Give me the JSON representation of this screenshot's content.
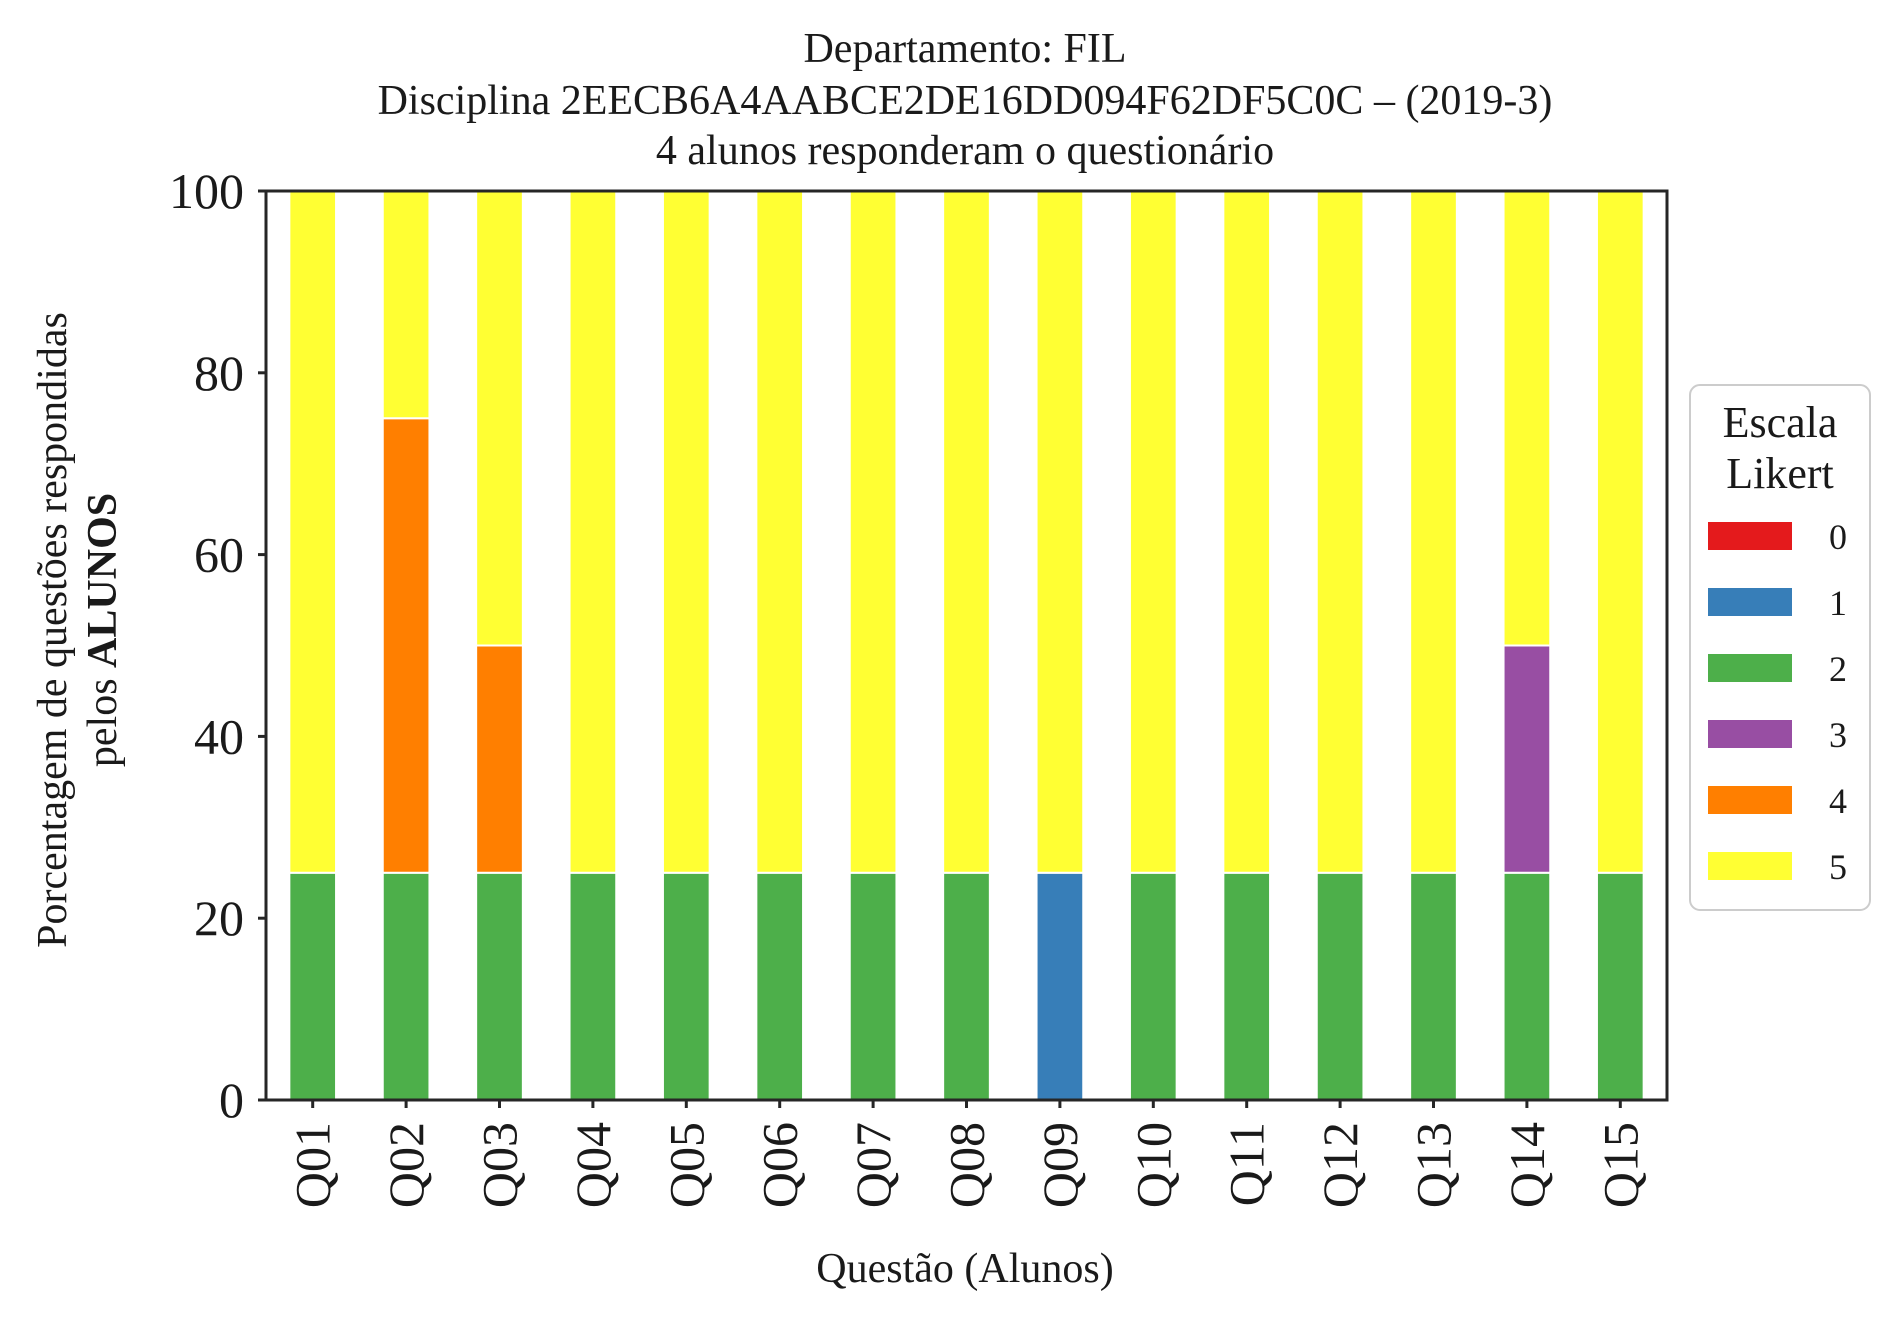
{
  "chart_data": {
    "type": "bar",
    "stacked": true,
    "title_lines": [
      "Departamento: FIL",
      "Disciplina 2EECB6A4AABCE2DE16DD094F62DF5C0C – (2019-3)",
      "4 alunos responderam o questionário"
    ],
    "xlabel": "Questão (Alunos)",
    "ylabel_line1": "Porcentagem de questões respondidas",
    "ylabel_line2_prefix": "pelos ",
    "ylabel_line2_bold": "ALUNOS",
    "ylim": [
      0,
      100
    ],
    "yticks": [
      "0",
      "20",
      "40",
      "60",
      "80",
      "100"
    ],
    "grid": false,
    "legend_placement": "right-outside",
    "legend_title_lines": [
      "Escala",
      "Likert"
    ],
    "categories": [
      "Q01",
      "Q02",
      "Q03",
      "Q04",
      "Q05",
      "Q06",
      "Q07",
      "Q08",
      "Q09",
      "Q10",
      "Q11",
      "Q12",
      "Q13",
      "Q14",
      "Q15"
    ],
    "series": [
      {
        "name": "0",
        "color": "#e41a1c",
        "values": [
          0,
          0,
          0,
          0,
          0,
          0,
          0,
          0,
          0,
          0,
          0,
          0,
          0,
          0,
          0
        ]
      },
      {
        "name": "1",
        "color": "#377eb8",
        "values": [
          0,
          0,
          0,
          0,
          0,
          0,
          0,
          0,
          25,
          0,
          0,
          0,
          0,
          0,
          0
        ]
      },
      {
        "name": "2",
        "color": "#4daf4a",
        "values": [
          25,
          25,
          25,
          25,
          25,
          25,
          25,
          25,
          0,
          25,
          25,
          25,
          25,
          25,
          25
        ]
      },
      {
        "name": "3",
        "color": "#984ea3",
        "values": [
          0,
          0,
          0,
          0,
          0,
          0,
          0,
          0,
          0,
          0,
          0,
          0,
          0,
          25,
          0
        ]
      },
      {
        "name": "4",
        "color": "#ff7f00",
        "values": [
          0,
          50,
          25,
          0,
          0,
          0,
          0,
          0,
          0,
          0,
          0,
          0,
          0,
          0,
          0
        ]
      },
      {
        "name": "5",
        "color": "#ffff33",
        "values": [
          75,
          25,
          50,
          75,
          75,
          75,
          75,
          75,
          75,
          75,
          75,
          75,
          75,
          50,
          75
        ]
      }
    ]
  }
}
